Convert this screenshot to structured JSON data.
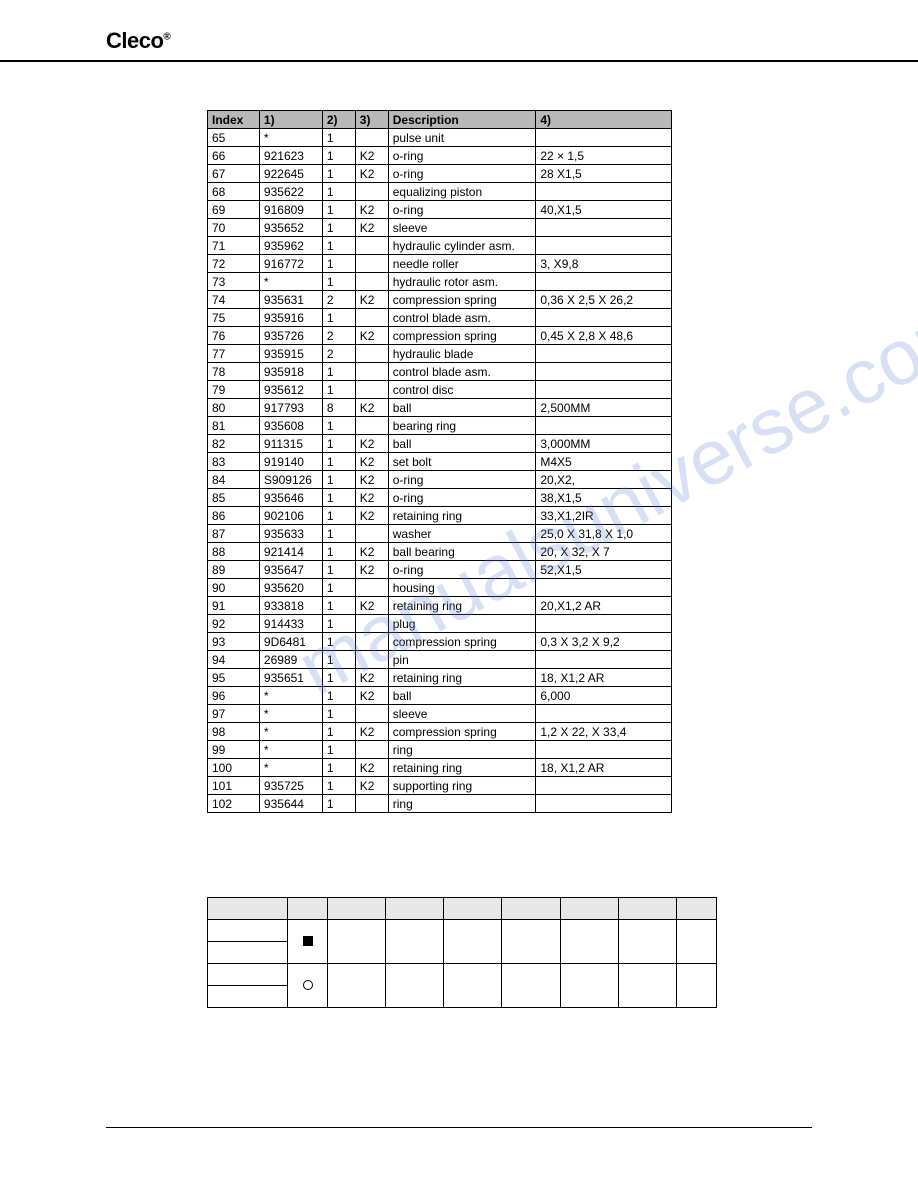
{
  "brand": "Cleco",
  "watermark_text": "manualsuniverse.com",
  "parts": {
    "headers": [
      "Index",
      "1)",
      "2)",
      "3)",
      "Description",
      "4)"
    ],
    "rows": [
      [
        "65",
        "*",
        "1",
        "",
        "pulse unit",
        ""
      ],
      [
        "66",
        "921623",
        "1",
        "K2",
        "o-ring",
        "22 × 1,5"
      ],
      [
        "67",
        "922645",
        "1",
        "K2",
        "o-ring",
        "28 X1,5"
      ],
      [
        "68",
        "935622",
        "1",
        "",
        "equalizing piston",
        ""
      ],
      [
        "69",
        "916809",
        "1",
        "K2",
        "o-ring",
        "40,X1,5"
      ],
      [
        "70",
        "935652",
        "1",
        "K2",
        "sleeve",
        ""
      ],
      [
        "71",
        "935962",
        "1",
        "",
        "hydraulic cylinder asm.",
        ""
      ],
      [
        "72",
        "916772",
        "1",
        "",
        "needle roller",
        "3, X9,8"
      ],
      [
        "73",
        "*",
        "1",
        "",
        "hydraulic rotor asm.",
        ""
      ],
      [
        "74",
        "935631",
        "2",
        "K2",
        "compression spring",
        "0,36 X 2,5 X 26,2"
      ],
      [
        "75",
        "935916",
        "1",
        "",
        "control blade asm.",
        ""
      ],
      [
        "76",
        "935726",
        "2",
        "K2",
        "compression spring",
        "0,45 X 2,8 X 48,6"
      ],
      [
        "77",
        "935915",
        "2",
        "",
        "hydraulic blade",
        ""
      ],
      [
        "78",
        "935918",
        "1",
        "",
        "control blade asm.",
        ""
      ],
      [
        "79",
        "935612",
        "1",
        "",
        "control disc",
        ""
      ],
      [
        "80",
        "917793",
        "8",
        "K2",
        "ball",
        "2,500MM"
      ],
      [
        "81",
        "935608",
        "1",
        "",
        "bearing ring",
        ""
      ],
      [
        "82",
        "911315",
        "1",
        "K2",
        "ball",
        "3,000MM"
      ],
      [
        "83",
        "919140",
        "1",
        "K2",
        "set bolt",
        "M4X5"
      ],
      [
        "84",
        "S909126",
        "1",
        "K2",
        "o-ring",
        "20,X2,"
      ],
      [
        "85",
        "935646",
        "1",
        "K2",
        "o-ring",
        "38,X1,5"
      ],
      [
        "86",
        "902106",
        "1",
        "K2",
        "retaining ring",
        "33,X1,2IR"
      ],
      [
        "87",
        "935633",
        "1",
        "",
        "washer",
        "25,0 X 31,8 X 1,0"
      ],
      [
        "88",
        "921414",
        "1",
        "K2",
        "ball bearing",
        "20, X 32, X 7"
      ],
      [
        "89",
        "935647",
        "1",
        "K2",
        "o-ring",
        "52,X1,5"
      ],
      [
        "90",
        "935620",
        "1",
        "",
        "housing",
        ""
      ],
      [
        "91",
        "933818",
        "1",
        "K2",
        "retaining ring",
        "20,X1,2 AR"
      ],
      [
        "92",
        "914433",
        "1",
        "",
        "plug",
        ""
      ],
      [
        "93",
        "9D6481",
        "1",
        "",
        "compression spring",
        "0,3 X 3,2 X  9,2"
      ],
      [
        "94",
        "26989",
        "1",
        "",
        "pin",
        ""
      ],
      [
        "95",
        "935651",
        "1",
        "K2",
        "retaining ring",
        "18, X1,2 AR"
      ],
      [
        "96",
        "*",
        "1",
        "K2",
        "ball",
        "6,000"
      ],
      [
        "97",
        "*",
        "1",
        "",
        "sleeve",
        ""
      ],
      [
        "98",
        "*",
        "1",
        "K2",
        "compression spring",
        "1,2 X 22, X 33,4"
      ],
      [
        "99",
        "*",
        "1",
        "",
        "ring",
        ""
      ],
      [
        "100",
        "*",
        "1",
        "K2",
        "retaining ring",
        "18, X1,2 AR"
      ],
      [
        "101",
        "935725",
        "1",
        "K2",
        "supporting ring",
        ""
      ],
      [
        "102",
        "935644",
        "1",
        "",
        "ring",
        ""
      ]
    ]
  },
  "second_table": {
    "header_cols": 9,
    "rows": [
      {
        "cells": [
          "",
          "",
          "",
          "",
          "",
          "",
          "",
          "",
          ""
        ],
        "span": "header"
      },
      {
        "cells": [
          "",
          "■",
          "",
          "",
          "",
          "",
          "",
          "",
          ""
        ],
        "rowspan_first": 2
      },
      {
        "cells": [
          "",
          "○",
          "",
          "",
          "",
          "",
          "",
          "",
          ""
        ],
        "rowspan_first": 2
      }
    ],
    "markers": {
      "square": "■",
      "circle": "○"
    }
  },
  "style": {
    "page_bg": "#ffffff",
    "header_bg": "#b8b8b8",
    "border_color": "#000000",
    "font_size_table": 12,
    "watermark_color": "rgba(100,130,220,0.25)"
  }
}
